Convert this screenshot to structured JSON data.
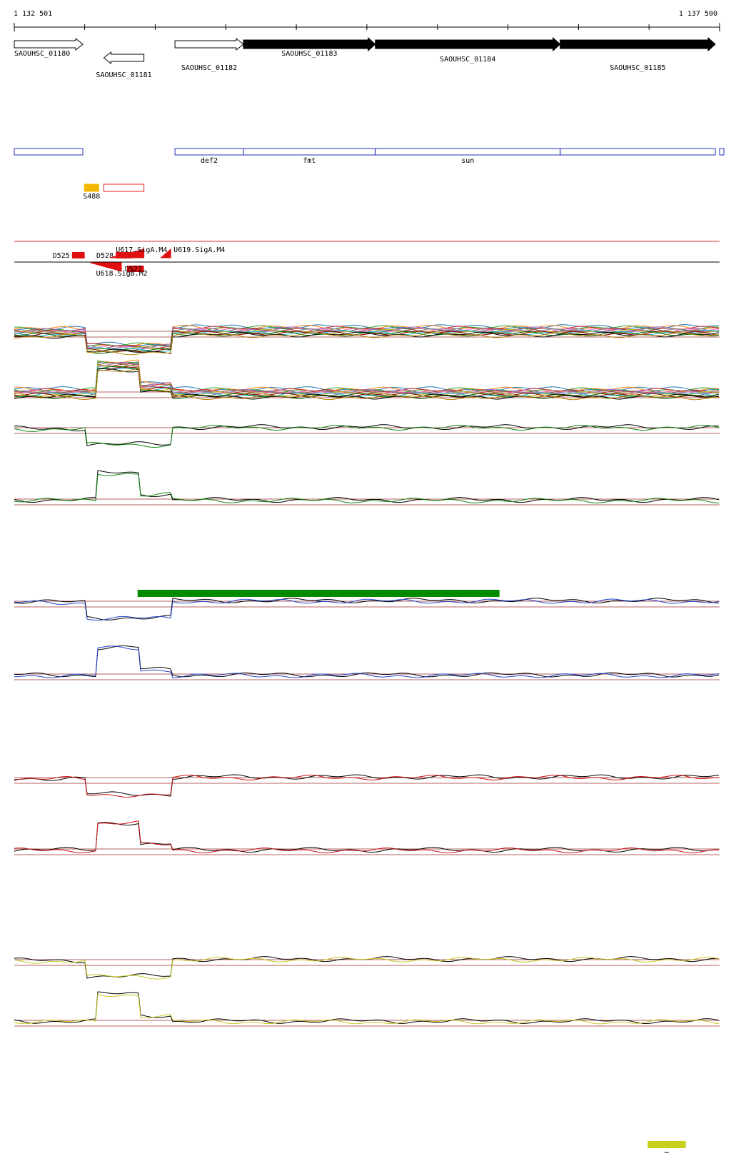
{
  "ruler": {
    "start_label": "1 132 501",
    "end_label": "1 137 500",
    "start": 1132501,
    "end": 1137500
  },
  "genes": [
    {
      "id": "SAOUHSC_01180",
      "start": 1132501,
      "end": 1132987,
      "strand": "+",
      "filled": false,
      "label": "SAOUHSC_01180"
    },
    {
      "id": "SAOUHSC_01181",
      "start": 1133136,
      "end": 1133420,
      "strand": "-",
      "filled": false,
      "label": "SAOUHSC_01181"
    },
    {
      "id": "SAOUHSC_01182",
      "start": 1133640,
      "end": 1134125,
      "strand": "+",
      "filled": false,
      "label": "SAOUHSC_01182"
    },
    {
      "id": "SAOUHSC_01183",
      "start": 1134125,
      "end": 1135060,
      "strand": "+",
      "filled": true,
      "label": "SAOUHSC_01183"
    },
    {
      "id": "SAOUHSC_01184",
      "start": 1135060,
      "end": 1136370,
      "strand": "+",
      "filled": true,
      "label": "SAOUHSC_01184"
    },
    {
      "id": "SAOUHSC_01185",
      "start": 1136370,
      "end": 1137470,
      "strand": "+",
      "filled": true,
      "label": "SAOUHSC_01185"
    }
  ],
  "operons": [
    {
      "start": 1132501,
      "end": 1132987,
      "label": ""
    },
    {
      "start": 1133640,
      "end": 1134125,
      "label": "def2"
    },
    {
      "start": 1134125,
      "end": 1135060,
      "label": "fmt"
    },
    {
      "start": 1135060,
      "end": 1136370,
      "label": "sun"
    },
    {
      "start": 1136370,
      "end": 1137470,
      "label": ""
    }
  ],
  "srna": [
    {
      "start": 1132998,
      "end": 1133100,
      "label": "S488",
      "color": "#f5b800",
      "filled": true
    },
    {
      "start": 1133136,
      "end": 1133420,
      "label": "",
      "color": "#e02020",
      "filled": false
    }
  ],
  "segments": [
    {
      "label": "D525",
      "start": 1132910,
      "end": 1133000,
      "strand": "+"
    },
    {
      "label": "D528",
      "start": 1133220,
      "end": 1133330,
      "strand": "+"
    },
    {
      "label": "U617.SigA.M4",
      "start": 1133180,
      "end": 1133420,
      "strand": "+"
    },
    {
      "label": "U619.SigA.M4",
      "start": 1133540,
      "end": 1133610,
      "strand": "+"
    },
    {
      "label": "D527",
      "start": 1133300,
      "end": 1133420,
      "strand": "-"
    },
    {
      "label": "U618.SigB.M2",
      "start": 1133040,
      "end": 1133260,
      "strand": "-"
    }
  ],
  "tracks": [
    {
      "name": "expr-all-plus",
      "color": "#888888",
      "n": 14,
      "base": 460,
      "amp": 10
    },
    {
      "name": "expr-all-minus",
      "color": "#888888",
      "n": 14,
      "base": 545,
      "amp": 10
    },
    {
      "name": "green-plus",
      "color": "#118811",
      "base": 595,
      "amp": 10
    },
    {
      "name": "green-minus",
      "color": "#118811",
      "base": 695,
      "amp": 10
    },
    {
      "name": "blue-plus",
      "color": "#2244cc",
      "base": 838,
      "amp": 10
    },
    {
      "name": "blue-minus",
      "color": "#2244cc",
      "base": 940,
      "amp": 10
    },
    {
      "name": "red-plus",
      "color": "#cc1111",
      "base": 1085,
      "amp": 10
    },
    {
      "name": "red-minus",
      "color": "#cc1111",
      "base": 1185,
      "amp": 10
    },
    {
      "name": "yellow-plus",
      "color": "#c8c820",
      "base": 1340,
      "amp": 10
    },
    {
      "name": "yellow-minus",
      "color": "#c8c820",
      "base": 1425,
      "amp": 10
    }
  ],
  "bars": [
    {
      "name": "green-region-bar",
      "start": 1133375,
      "end": 1135940,
      "color": "#008a00"
    },
    {
      "name": "yellow-region-bar",
      "start": 1136990,
      "end": 1137260,
      "color": "#c8d11a"
    }
  ]
}
